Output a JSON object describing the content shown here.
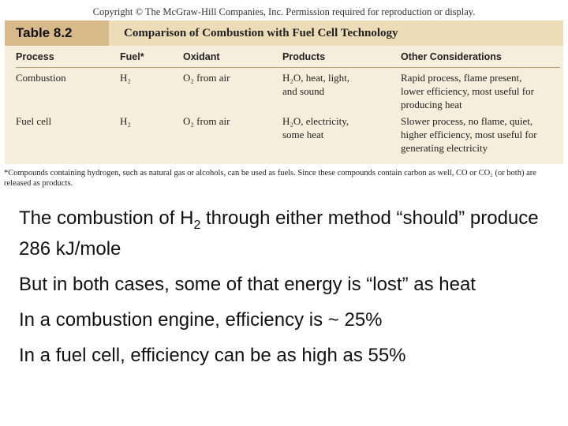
{
  "copyright": "Copyright © The McGraw-Hill Companies, Inc. Permission required for reproduction or display.",
  "table": {
    "label": "Table 8.2",
    "title": "Comparison of Combustion with Fuel Cell Technology",
    "headers": [
      "Process",
      "Fuel*",
      "Oxidant",
      "Products",
      "Other Considerations"
    ],
    "rows": [
      {
        "process": "Combustion",
        "fuel": "H₂",
        "oxidant": "O₂ from air",
        "products": "H₂O, heat, light,\nand sound",
        "other": "Rapid process, flame present,\nlower efficiency, most useful for\nproducing heat"
      },
      {
        "process": "Fuel cell",
        "fuel": "H₂",
        "oxidant": "O₂ from air",
        "products": "H₂O, electricity,\nsome heat",
        "other": "Slower process, no flame, quiet,\nhigher efficiency, most useful for\ngenerating electricity"
      }
    ],
    "footnote": "*Compounds containing hydrogen, such as natural gas or alcohols, can be used as fuels. Since these compounds contain carbon as well, CO or CO₂ (or both) are released as products."
  },
  "bullets": {
    "b1_before": "The combustion of H",
    "b1_sub": "2",
    "b1_after": " through either method “should” produce 286 kJ/mole",
    "b2": "But in both cases, some of that energy is “lost” as heat",
    "b3": "In a combustion engine, efficiency is ~ 25%",
    "b4": "In a fuel cell, efficiency can be as high as 55%"
  }
}
